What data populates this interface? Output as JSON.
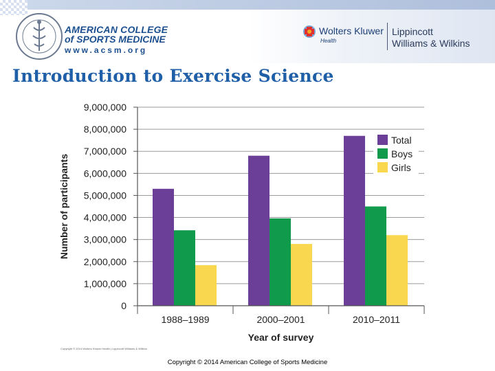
{
  "header": {
    "acsm": {
      "line1": "AMERICAN COLLEGE",
      "line2": "of SPORTS MEDICINE",
      "url": "www.acsm.org"
    },
    "publisher": {
      "name": "Wolters Kluwer",
      "health": "Health",
      "imprint_line1": "Lippincott",
      "imprint_line2": "Williams & Wilkins"
    }
  },
  "slide": {
    "title": "Introduction to Exercise Science",
    "figure_credit": "Copyright © 2014 Wolters Kluwer Health | Lippincott Williams & Wilkins",
    "copyright": "Copyright © 2014 American College of Sports Medicine"
  },
  "colors": {
    "total": "#6b3f98",
    "boys": "#0f9a4c",
    "girls": "#f9d84f",
    "title": "#1f5fa8"
  },
  "chart_data": {
    "type": "bar",
    "title": "",
    "xlabel": "Year of survey",
    "ylabel": "Number of participants",
    "categories": [
      "1988–1989",
      "2000–2001",
      "2010–2011"
    ],
    "series": [
      {
        "name": "Total",
        "values": [
          5300000,
          6800000,
          7700000
        ]
      },
      {
        "name": "Boys",
        "values": [
          3420000,
          3960000,
          4500000
        ]
      },
      {
        "name": "Girls",
        "values": [
          1840000,
          2800000,
          3200000
        ]
      }
    ],
    "ylim": [
      0,
      9000000
    ],
    "yticks": [
      0,
      1000000,
      2000000,
      3000000,
      4000000,
      5000000,
      6000000,
      7000000,
      8000000,
      9000000
    ],
    "ytick_labels": [
      "0",
      "1,000,000",
      "2,000,000",
      "3,000,000",
      "4,000,000",
      "5,000,000",
      "6,000,000",
      "7,000,000",
      "8,000,000",
      "9,000,000"
    ],
    "grid": true,
    "legend_position": "top-right"
  }
}
